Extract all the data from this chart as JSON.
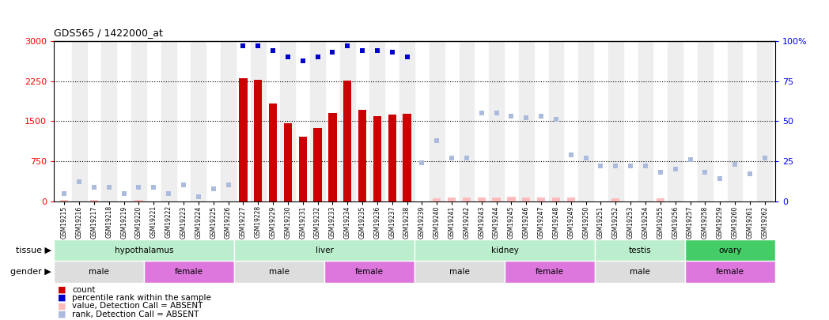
{
  "title": "GDS565 / 1422000_at",
  "samples": [
    "GSM19215",
    "GSM19216",
    "GSM19217",
    "GSM19218",
    "GSM19219",
    "GSM19220",
    "GSM19221",
    "GSM19222",
    "GSM19223",
    "GSM19224",
    "GSM19225",
    "GSM19226",
    "GSM19227",
    "GSM19228",
    "GSM19229",
    "GSM19230",
    "GSM19231",
    "GSM19232",
    "GSM19233",
    "GSM19234",
    "GSM19235",
    "GSM19236",
    "GSM19237",
    "GSM19238",
    "GSM19239",
    "GSM19240",
    "GSM19241",
    "GSM19242",
    "GSM19243",
    "GSM19244",
    "GSM19245",
    "GSM19246",
    "GSM19247",
    "GSM19248",
    "GSM19249",
    "GSM19250",
    "GSM19251",
    "GSM19252",
    "GSM19253",
    "GSM19254",
    "GSM19255",
    "GSM19256",
    "GSM19257",
    "GSM19258",
    "GSM19259",
    "GSM19260",
    "GSM19261",
    "GSM19262"
  ],
  "count_values": [
    null,
    null,
    null,
    null,
    null,
    null,
    null,
    null,
    null,
    null,
    null,
    null,
    2310,
    2285,
    1830,
    1460,
    1215,
    1380,
    1660,
    2265,
    1710,
    1595,
    1625,
    1645,
    null,
    null,
    null,
    null,
    null,
    null,
    null,
    null,
    null,
    null,
    null,
    null,
    null,
    null,
    null,
    null,
    null,
    null,
    null,
    null,
    null,
    null,
    null,
    null
  ],
  "absent_values": [
    30,
    null,
    25,
    null,
    null,
    25,
    null,
    null,
    null,
    null,
    null,
    null,
    null,
    null,
    null,
    null,
    null,
    null,
    null,
    null,
    null,
    null,
    null,
    null,
    null,
    60,
    75,
    75,
    75,
    75,
    80,
    75,
    75,
    75,
    65,
    null,
    null,
    55,
    null,
    null,
    55,
    null,
    null,
    null,
    null,
    null,
    null,
    null
  ],
  "percentile_rank": [
    null,
    null,
    null,
    null,
    null,
    null,
    null,
    null,
    null,
    null,
    null,
    null,
    97,
    97,
    94,
    90,
    88,
    90,
    93,
    97,
    94,
    94,
    93,
    90,
    null,
    null,
    null,
    null,
    null,
    null,
    null,
    null,
    null,
    null,
    null,
    null,
    null,
    null,
    null,
    null,
    null,
    null,
    null,
    null,
    null,
    null,
    null,
    null
  ],
  "absent_rank": [
    5,
    12,
    9,
    9,
    5,
    9,
    9,
    5,
    10,
    3,
    8,
    10,
    null,
    null,
    null,
    null,
    null,
    null,
    null,
    null,
    null,
    null,
    null,
    null,
    24,
    38,
    27,
    27,
    55,
    55,
    53,
    52,
    53,
    51,
    29,
    27,
    22,
    22,
    22,
    22,
    18,
    20,
    26,
    18,
    14,
    23,
    17,
    27
  ],
  "tissues": [
    {
      "label": "hypothalamus",
      "start": 0,
      "end": 11,
      "color": "#BBEECC"
    },
    {
      "label": "liver",
      "start": 12,
      "end": 23,
      "color": "#BBEECC"
    },
    {
      "label": "kidney",
      "start": 24,
      "end": 35,
      "color": "#BBEECC"
    },
    {
      "label": "testis",
      "start": 36,
      "end": 41,
      "color": "#BBEECC"
    },
    {
      "label": "ovary",
      "start": 42,
      "end": 47,
      "color": "#44CC66"
    }
  ],
  "genders": [
    {
      "label": "male",
      "start": 0,
      "end": 5,
      "color": "#DDDDDD"
    },
    {
      "label": "female",
      "start": 6,
      "end": 11,
      "color": "#DD77DD"
    },
    {
      "label": "male",
      "start": 12,
      "end": 17,
      "color": "#DDDDDD"
    },
    {
      "label": "female",
      "start": 18,
      "end": 23,
      "color": "#DD77DD"
    },
    {
      "label": "male",
      "start": 24,
      "end": 29,
      "color": "#DDDDDD"
    },
    {
      "label": "female",
      "start": 30,
      "end": 35,
      "color": "#DD77DD"
    },
    {
      "label": "male",
      "start": 36,
      "end": 41,
      "color": "#DDDDDD"
    },
    {
      "label": "female",
      "start": 42,
      "end": 47,
      "color": "#DD77DD"
    }
  ],
  "ylim_left": [
    0,
    3000
  ],
  "ylim_right": [
    0,
    100
  ],
  "yticks_left": [
    0,
    750,
    1500,
    2250,
    3000
  ],
  "yticks_right": [
    0,
    25,
    50,
    75,
    100
  ],
  "bar_color": "#CC0000",
  "absent_bar_color": "#FFBBBB",
  "percentile_color": "#0000CC",
  "absent_rank_color": "#AABBDD",
  "legend_items": [
    {
      "color": "#CC0000",
      "label": "count"
    },
    {
      "color": "#0000CC",
      "label": "percentile rank within the sample"
    },
    {
      "color": "#FFBBBB",
      "label": "value, Detection Call = ABSENT"
    },
    {
      "color": "#AABBDD",
      "label": "rank, Detection Call = ABSENT"
    }
  ]
}
